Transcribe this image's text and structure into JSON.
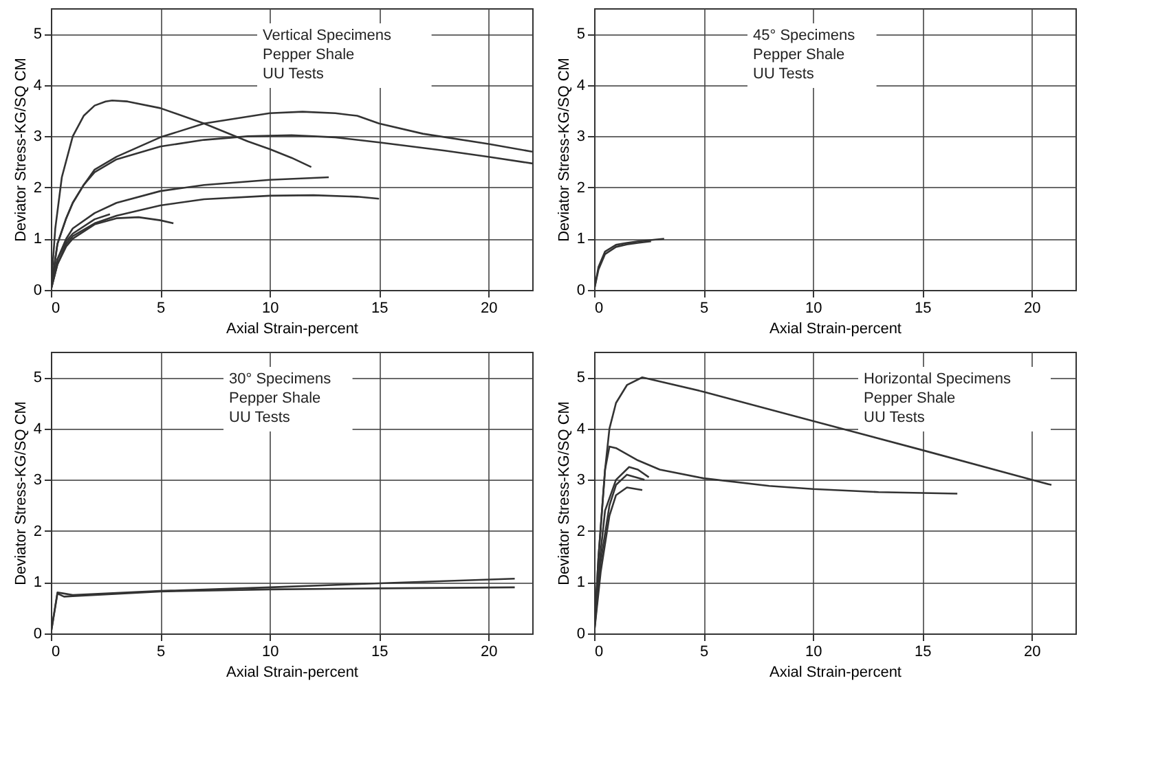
{
  "chart_data": [
    {
      "type": "line",
      "xlabel": "Axial Strain-percent",
      "ylabel": "Deviator Stress-KG/SQ CM",
      "annotations": [
        "Vertical Specimens",
        "Pepper Shale",
        "UU Tests"
      ],
      "xlim": [
        0,
        22
      ],
      "ylim": [
        0,
        5.5
      ],
      "xticks": [
        0,
        5,
        10,
        15,
        20
      ],
      "yticks": [
        0,
        1,
        2,
        3,
        4,
        5
      ],
      "grid": true,
      "series": [
        {
          "color": "#333333",
          "x": [
            0,
            0.2,
            0.5,
            1,
            1.5,
            2,
            2.5,
            2.8,
            3.5,
            5,
            7,
            9,
            10,
            11,
            11.9
          ],
          "values": [
            0,
            1.2,
            2.2,
            3.0,
            3.4,
            3.6,
            3.68,
            3.7,
            3.68,
            3.55,
            3.25,
            2.9,
            2.75,
            2.58,
            2.4
          ]
        },
        {
          "color": "#333333",
          "x": [
            0,
            0.3,
            0.7,
            1,
            1.5,
            2,
            3,
            5,
            7,
            10,
            11.5,
            13,
            14,
            15,
            17,
            20,
            22
          ],
          "values": [
            0,
            0.9,
            1.4,
            1.7,
            2.05,
            2.35,
            2.6,
            2.98,
            3.25,
            3.45,
            3.48,
            3.45,
            3.4,
            3.25,
            3.05,
            2.85,
            2.7
          ]
        },
        {
          "color": "#333333",
          "x": [
            0,
            0.3,
            0.7,
            1,
            1.5,
            2,
            3,
            5,
            7,
            9,
            11,
            13,
            15,
            18,
            20,
            22
          ],
          "values": [
            0,
            0.9,
            1.4,
            1.7,
            2.05,
            2.3,
            2.55,
            2.8,
            2.93,
            3.0,
            3.02,
            2.98,
            2.88,
            2.72,
            2.6,
            2.47
          ]
        },
        {
          "color": "#333333",
          "x": [
            0,
            0.3,
            0.7,
            1,
            2,
            3,
            5,
            7,
            10,
            12.7
          ],
          "values": [
            0,
            0.6,
            1.0,
            1.2,
            1.5,
            1.7,
            1.93,
            2.05,
            2.15,
            2.2
          ]
        },
        {
          "color": "#333333",
          "x": [
            0,
            0.3,
            0.7,
            1,
            2,
            3,
            5,
            7,
            10,
            12,
            14,
            15
          ],
          "values": [
            0,
            0.5,
            0.9,
            1.05,
            1.3,
            1.45,
            1.65,
            1.77,
            1.84,
            1.85,
            1.82,
            1.78
          ]
        },
        {
          "color": "#333333",
          "x": [
            0,
            0.3,
            0.7,
            1,
            2,
            3,
            4,
            5,
            5.6
          ],
          "values": [
            0,
            0.5,
            0.85,
            1.0,
            1.28,
            1.4,
            1.42,
            1.36,
            1.3
          ]
        },
        {
          "color": "#333333",
          "x": [
            0,
            0.3,
            0.7,
            1,
            2,
            2.7
          ],
          "values": [
            0,
            0.6,
            0.95,
            1.1,
            1.38,
            1.48
          ]
        }
      ]
    },
    {
      "type": "line",
      "xlabel": "Axial Strain-percent",
      "ylabel": "Deviator Stress-KG/SQ CM",
      "annotations": [
        "45° Specimens",
        "Pepper Shale",
        "UU Tests"
      ],
      "xlim": [
        0,
        22
      ],
      "ylim": [
        0,
        5.5
      ],
      "xticks": [
        0,
        5,
        10,
        15,
        20
      ],
      "yticks": [
        0,
        1,
        2,
        3,
        4,
        5
      ],
      "grid": true,
      "series": [
        {
          "color": "#333333",
          "x": [
            0,
            0.2,
            0.5,
            1,
            1.5,
            2,
            3.2
          ],
          "values": [
            0,
            0.45,
            0.75,
            0.88,
            0.92,
            0.95,
            1.0
          ]
        },
        {
          "color": "#333333",
          "x": [
            0,
            0.2,
            0.5,
            1,
            1.5,
            2,
            2.6
          ],
          "values": [
            0,
            0.4,
            0.7,
            0.84,
            0.89,
            0.92,
            0.95
          ]
        }
      ]
    },
    {
      "type": "line",
      "xlabel": "Axial Strain-percent",
      "ylabel": "Deviator Stress-KG/SQ CM",
      "annotations": [
        "30° Specimens",
        "Pepper Shale",
        "UU Tests"
      ],
      "xlim": [
        0,
        22
      ],
      "ylim": [
        0,
        5.5
      ],
      "xticks": [
        0,
        5,
        10,
        15,
        20
      ],
      "yticks": [
        0,
        1,
        2,
        3,
        4,
        5
      ],
      "grid": true,
      "series": [
        {
          "color": "#333333",
          "x": [
            0,
            0.3,
            0.6,
            1,
            5,
            10,
            15,
            21.2
          ],
          "values": [
            0,
            0.8,
            0.78,
            0.75,
            0.83,
            0.9,
            0.98,
            1.07
          ]
        },
        {
          "color": "#333333",
          "x": [
            0,
            0.3,
            0.6,
            1,
            5,
            10,
            15,
            21.2
          ],
          "values": [
            0,
            0.78,
            0.72,
            0.73,
            0.82,
            0.86,
            0.88,
            0.9
          ]
        }
      ]
    },
    {
      "type": "line",
      "xlabel": "Axial Strain-percent",
      "ylabel": "Deviator Stress-KG/SQ CM",
      "annotations": [
        "Horizontal Specimens",
        "Pepper Shale",
        "UU Tests"
      ],
      "xlim": [
        0,
        22
      ],
      "ylim": [
        0,
        5.5
      ],
      "xticks": [
        0,
        5,
        10,
        15,
        20
      ],
      "yticks": [
        0,
        1,
        2,
        3,
        4,
        5
      ],
      "grid": true,
      "series": [
        {
          "color": "#333333",
          "x": [
            0,
            0.2,
            0.5,
            0.7,
            1,
            1.5,
            2.2,
            5,
            10,
            15,
            20,
            20.9
          ],
          "values": [
            0,
            1.5,
            3.2,
            4.0,
            4.5,
            4.85,
            5.0,
            4.72,
            4.15,
            3.58,
            3.0,
            2.9
          ]
        },
        {
          "color": "#333333",
          "x": [
            0,
            0.2,
            0.5,
            0.7,
            1,
            2,
            3,
            5,
            8,
            10,
            13,
            16.6
          ],
          "values": [
            0,
            1.5,
            3.2,
            3.65,
            3.62,
            3.38,
            3.2,
            3.03,
            2.88,
            2.82,
            2.76,
            2.73
          ]
        },
        {
          "color": "#333333",
          "x": [
            0,
            0.2,
            0.5,
            1,
            1.6,
            2,
            2.5
          ],
          "values": [
            0,
            1.2,
            2.4,
            3.0,
            3.25,
            3.2,
            3.05
          ]
        },
        {
          "color": "#333333",
          "x": [
            0,
            0.3,
            0.7,
            1,
            1.5,
            2.3
          ],
          "values": [
            0,
            1.4,
            2.5,
            2.9,
            3.1,
            3.0
          ]
        },
        {
          "color": "#333333",
          "x": [
            0,
            0.3,
            0.7,
            1,
            1.5,
            2.2
          ],
          "values": [
            0,
            1.2,
            2.3,
            2.7,
            2.85,
            2.8
          ]
        }
      ]
    }
  ]
}
